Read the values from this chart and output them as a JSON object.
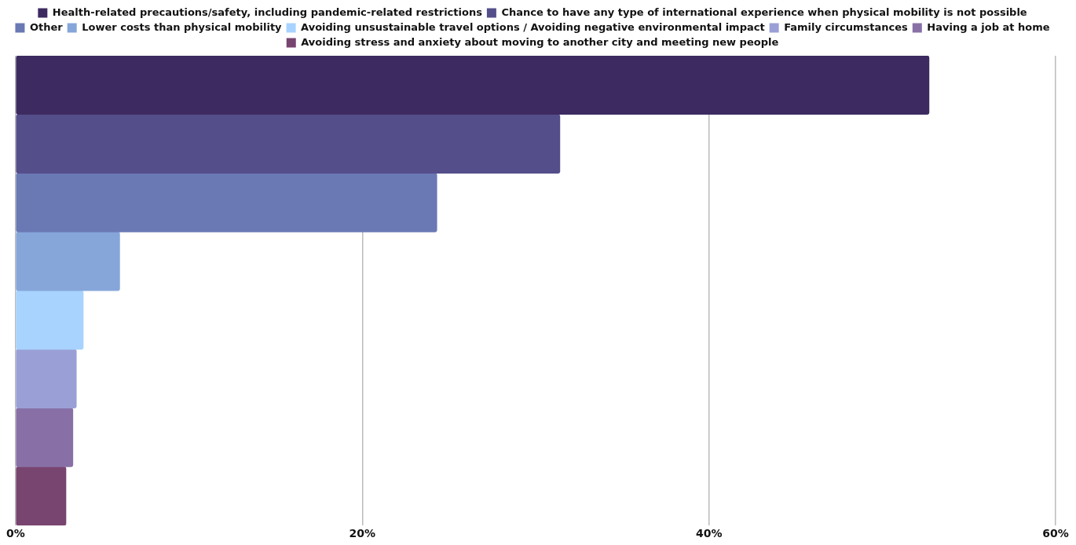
{
  "chart_data": {
    "type": "bar",
    "orientation": "horizontal",
    "categories": [
      null,
      null,
      null,
      null,
      null,
      null,
      null,
      null
    ],
    "series": [
      {
        "name": "Health-related precautions/safety, including pandemic-related restrictions",
        "color": "#3d2a60",
        "values": [
          52.7,
          null,
          null,
          null,
          null,
          null,
          null,
          null
        ]
      },
      {
        "name": "Chance to have any type of international experience when physical mobility is not possible",
        "color": "#544e8a",
        "values": [
          null,
          31.4,
          null,
          null,
          null,
          null,
          null,
          null
        ]
      },
      {
        "name": "Other",
        "color": "#6a79b4",
        "values": [
          null,
          null,
          24.3,
          null,
          null,
          null,
          null,
          null
        ]
      },
      {
        "name": "Lower costs than physical mobility",
        "color": "#86a6da",
        "values": [
          null,
          null,
          null,
          6.0,
          null,
          null,
          null,
          null
        ]
      },
      {
        "name": "Avoiding unsustainable travel options / Avoiding negative environmental impact",
        "color": "#a8d3fe",
        "values": [
          null,
          null,
          null,
          null,
          3.9,
          null,
          null,
          null
        ]
      },
      {
        "name": "Family circumstances",
        "color": "#9aa0d6",
        "values": [
          null,
          null,
          null,
          null,
          null,
          3.5,
          null,
          null
        ]
      },
      {
        "name": "Having a job at home",
        "color": "#8870a6",
        "values": [
          null,
          null,
          null,
          null,
          null,
          null,
          3.3,
          null
        ]
      },
      {
        "name": "Avoiding stress and anxiety about moving to another city and meeting new people",
        "color": "#784470",
        "values": [
          null,
          null,
          null,
          null,
          null,
          null,
          null,
          2.9
        ]
      }
    ],
    "xlim": [
      0,
      60
    ],
    "xticks": [
      {
        "value": 0,
        "label": "0%"
      },
      {
        "value": 20,
        "label": "20%"
      },
      {
        "value": 40,
        "label": "40%"
      },
      {
        "value": 60,
        "label": "60%"
      }
    ],
    "grid": "x",
    "legend": "top",
    "tick_labels": "x"
  }
}
